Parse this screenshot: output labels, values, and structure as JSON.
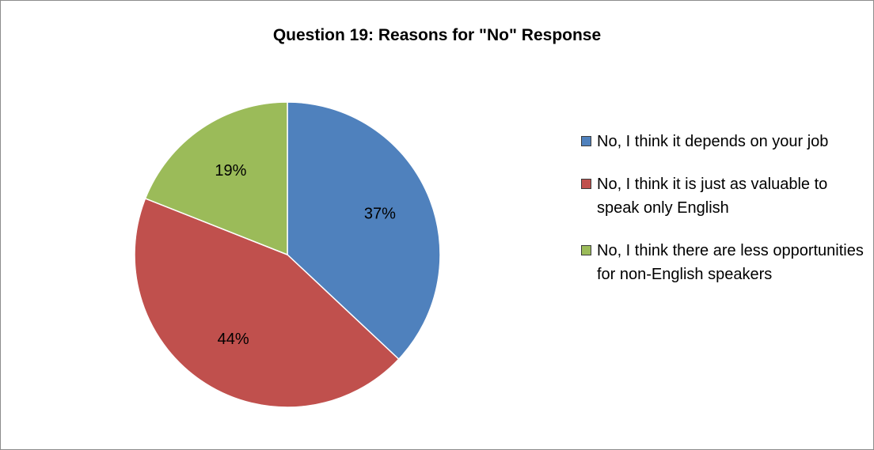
{
  "chart_data": {
    "type": "pie",
    "title": "Question 19: Reasons for \"No\" Response",
    "legend_position": "right",
    "slices": [
      {
        "name": "No, I think it depends on your job",
        "value": 37,
        "label": "37%",
        "color": "#4F81BD"
      },
      {
        "name": "No, I think it is just as valuable to speak only English",
        "value": 44,
        "label": "44%",
        "color": "#C0504D"
      },
      {
        "name": "No, I think there are less opportunities for non-English speakers",
        "value": 19,
        "label": "19%",
        "color": "#9BBB59"
      }
    ]
  }
}
